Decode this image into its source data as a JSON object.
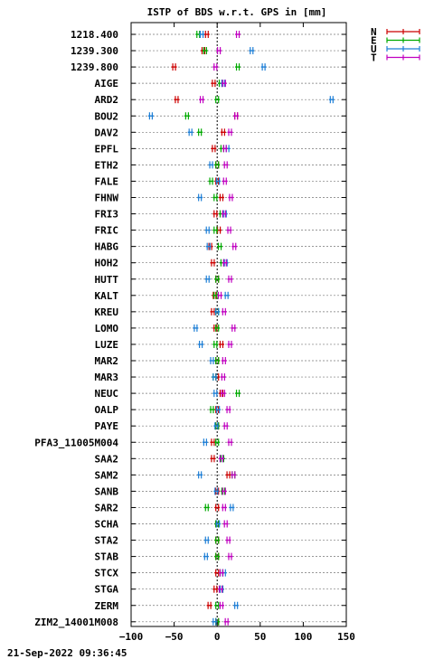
{
  "chart_data": {
    "type": "scatter",
    "title": "ISTP of BDS w.r.t. GPS in [mm]",
    "xlabel": "",
    "ylabel": "",
    "xlim": [
      -100,
      150
    ],
    "xticks": [
      -100,
      -50,
      0,
      50,
      100,
      150
    ],
    "grid": true,
    "legend_position": "top-right",
    "series": [
      {
        "name": "N",
        "color": "#cc0000"
      },
      {
        "name": "E",
        "color": "#00aa00"
      },
      {
        "name": "U",
        "color": "#1e7fd6"
      },
      {
        "name": "T",
        "color": "#c000c0"
      }
    ],
    "stations": [
      {
        "label": "1218.400",
        "N": -12,
        "E": -22,
        "U": -18,
        "T": 24
      },
      {
        "label": "1239.300",
        "N": -16,
        "E": -14,
        "U": 40,
        "T": 2
      },
      {
        "label": "1239.800",
        "N": -50,
        "E": 24,
        "U": 54,
        "T": -2
      },
      {
        "label": "AIGE",
        "N": -4,
        "E": 4,
        "U": 7,
        "T": 8
      },
      {
        "label": "ARD2",
        "N": -47,
        "E": 0,
        "U": 133,
        "T": -18
      },
      {
        "label": "BOU2",
        "N": 22,
        "E": -35,
        "U": -77,
        "T": 22
      },
      {
        "label": "DAV2",
        "N": 7,
        "E": -20,
        "U": -31,
        "T": 15
      },
      {
        "label": "EPFL",
        "N": -4,
        "E": 6,
        "U": 12,
        "T": 9
      },
      {
        "label": "ETH2",
        "N": 0,
        "E": 0,
        "U": -7,
        "T": 10
      },
      {
        "label": "FALE",
        "N": 0,
        "E": -7,
        "U": 1,
        "T": 9
      },
      {
        "label": "FHNW",
        "N": 5,
        "E": -2,
        "U": -20,
        "T": 16
      },
      {
        "label": "FRI3",
        "N": -2,
        "E": 5,
        "U": 9,
        "T": 8
      },
      {
        "label": "FRIC",
        "N": 2,
        "E": -2,
        "U": -11,
        "T": 14
      },
      {
        "label": "HABG",
        "N": -8,
        "E": 3,
        "U": -10,
        "T": 20
      },
      {
        "label": "HOH2",
        "N": -5,
        "E": 6,
        "U": 10,
        "T": 9
      },
      {
        "label": "HUTT",
        "N": 0,
        "E": 0,
        "U": -11,
        "T": 15
      },
      {
        "label": "KALT",
        "N": -3,
        "E": -2,
        "U": 11,
        "T": 3
      },
      {
        "label": "KREU",
        "N": -5,
        "E": 0,
        "U": 0,
        "T": 8
      },
      {
        "label": "LOMO",
        "N": -2,
        "E": 0,
        "U": -25,
        "T": 19
      },
      {
        "label": "LUZE",
        "N": 5,
        "E": -2,
        "U": -19,
        "T": 15
      },
      {
        "label": "MAR2",
        "N": 0,
        "E": 0,
        "U": -6,
        "T": 8
      },
      {
        "label": "MAR3",
        "N": 0,
        "E": -3,
        "U": -3,
        "T": 7
      },
      {
        "label": "NEUC",
        "N": 5,
        "E": 24,
        "U": -2,
        "T": 7
      },
      {
        "label": "OALP",
        "N": 0,
        "E": -6,
        "U": 1,
        "T": 13
      },
      {
        "label": "PAYE",
        "N": 0,
        "E": 0,
        "U": -1,
        "T": 10
      },
      {
        "label": "PFA3_11005M004",
        "N": -5,
        "E": 0,
        "U": -14,
        "T": 15
      },
      {
        "label": "SAA2",
        "N": -5,
        "E": 6,
        "U": 5,
        "T": 5
      },
      {
        "label": "SAM2",
        "N": 13,
        "E": 19,
        "U": -20,
        "T": 19
      },
      {
        "label": "SANB",
        "N": 0,
        "E": 7,
        "U": -1,
        "T": 8
      },
      {
        "label": "SAR2",
        "N": 0,
        "E": -12,
        "U": 17,
        "T": 8
      },
      {
        "label": "SCHA",
        "N": 0,
        "E": 0,
        "U": 1,
        "T": 10
      },
      {
        "label": "STA2",
        "N": 0,
        "E": 0,
        "U": -12,
        "T": 13
      },
      {
        "label": "STAB",
        "N": 0,
        "E": 0,
        "U": -13,
        "T": 15
      },
      {
        "label": "STCX",
        "N": 0,
        "E": 5,
        "U": 8,
        "T": 5
      },
      {
        "label": "STGA",
        "N": -2,
        "E": 5,
        "U": 5,
        "T": 4
      },
      {
        "label": "ZERM",
        "N": -9,
        "E": 0,
        "U": 22,
        "T": 5
      },
      {
        "label": "ZIM2_14001M008",
        "N": 0,
        "E": 0,
        "U": -3,
        "T": 11
      }
    ]
  },
  "footer": {
    "timestamp": "21-Sep-2022 09:36:45"
  }
}
